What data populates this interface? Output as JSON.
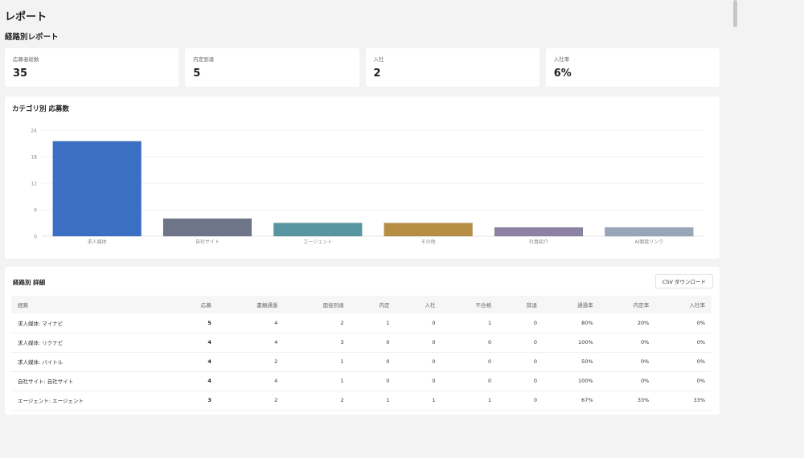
{
  "header": {
    "title": "レポート"
  },
  "section": {
    "title": "経路別レポート"
  },
  "kpis": [
    {
      "label": "応募者総数",
      "value": "35"
    },
    {
      "label": "内定到達",
      "value": "5"
    },
    {
      "label": "入社",
      "value": "2"
    },
    {
      "label": "入社率",
      "value": "6%"
    }
  ],
  "chart": {
    "title": "カテゴリ別 応募数"
  },
  "chart_data": {
    "type": "bar",
    "title": "カテゴリ別 応募数",
    "categories": [
      "求人媒体",
      "自社サイト",
      "エージェント",
      "その他",
      "社員紹介",
      "AI面接リンク"
    ],
    "values": [
      21.5,
      4,
      3,
      3,
      2,
      2
    ],
    "colors": [
      "#3a6fc4",
      "#6e7589",
      "#5796a0",
      "#b68f45",
      "#8c82a4",
      "#99a6b8"
    ],
    "yticks": [
      0,
      6,
      12,
      18,
      24
    ],
    "ylim": [
      0,
      24
    ],
    "grid": true,
    "legend": "none"
  },
  "table": {
    "title": "経路別 詳細",
    "csv_label": "CSV ダウンロード",
    "columns": [
      "経路",
      "応募",
      "書類通過",
      "面接到達",
      "内定",
      "入社",
      "不合格",
      "辞退",
      "通過率",
      "内定率",
      "入社率"
    ],
    "rows": [
      [
        "求人媒体: マイナビ",
        "5",
        "4",
        "2",
        "1",
        "0",
        "1",
        "0",
        "80%",
        "20%",
        "0%"
      ],
      [
        "求人媒体: リクナビ",
        "4",
        "4",
        "3",
        "0",
        "0",
        "0",
        "0",
        "100%",
        "0%",
        "0%"
      ],
      [
        "求人媒体: バイトル",
        "4",
        "2",
        "1",
        "0",
        "0",
        "0",
        "0",
        "50%",
        "0%",
        "0%"
      ],
      [
        "自社サイト: 自社サイト",
        "4",
        "4",
        "1",
        "0",
        "0",
        "0",
        "0",
        "100%",
        "0%",
        "0%"
      ],
      [
        "エージェント: エージェント",
        "3",
        "2",
        "2",
        "1",
        "1",
        "1",
        "0",
        "67%",
        "33%",
        "33%"
      ]
    ]
  }
}
